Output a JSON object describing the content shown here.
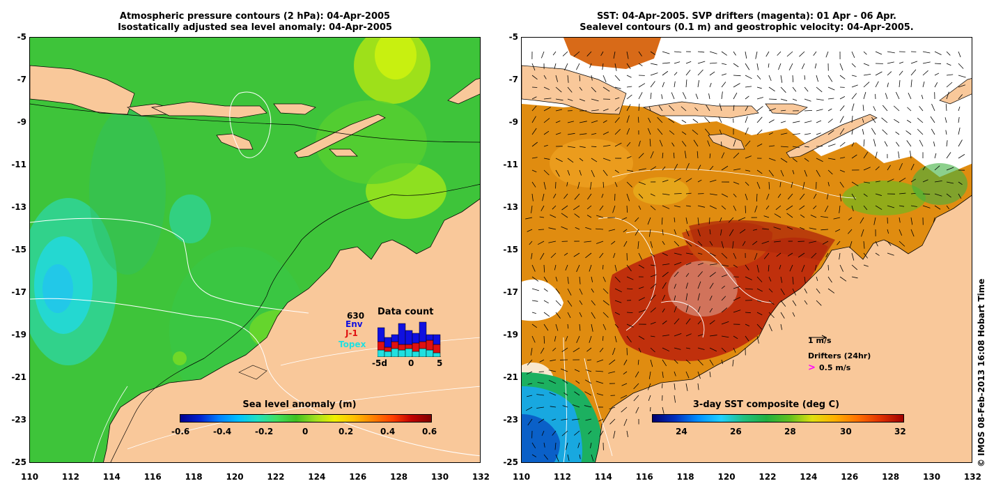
{
  "left_panel": {
    "title_line1": "Atmospheric pressure contours (2 hPa): 04-Apr-2005",
    "title_line2": "Isostatically adjusted sea level anomaly: 04-Apr-2005",
    "colorbar_title": "Sea level anomaly (m)",
    "colorbar_ticks": [
      "-0.6",
      "-0.4",
      "-0.2",
      "0",
      "0.2",
      "0.4",
      "0.6"
    ],
    "data_count": {
      "title": "Data count",
      "total": "630",
      "legend": [
        "Env",
        "J-1",
        "Topex"
      ],
      "legend_colors": [
        "#1010e0",
        "#e01010",
        "#20e0e0"
      ],
      "x_ticks": [
        "-5d",
        "0",
        "5"
      ]
    }
  },
  "right_panel": {
    "title_line1": "SST: 04-Apr-2005. SVP drifters (magenta): 01 Apr - 06 Apr.",
    "title_line2": "Sealevel contours (0.1 m) and geostrophic velocity: 04-Apr-2005.",
    "colorbar_title": "3-day SST composite (deg C)",
    "colorbar_ticks": [
      "24",
      "26",
      "28",
      "30",
      "32"
    ],
    "velocity_scale_label": "1 m/s",
    "drifters_label": "Drifters (24hr)",
    "drifter_scale_label": "0.5 m/s"
  },
  "axes": {
    "lat_ticks": [
      "-5",
      "-7",
      "-9",
      "-11",
      "-13",
      "-15",
      "-17",
      "-19",
      "-21",
      "-23",
      "-25"
    ],
    "lon_ticks": [
      "110",
      "112",
      "114",
      "116",
      "118",
      "120",
      "122",
      "124",
      "126",
      "128",
      "130",
      "132"
    ]
  },
  "credit": "© IMOS 08-Feb-2013 16:08 Hobart Time",
  "colors": {
    "land": "#f9c89a",
    "sla_background": "#3ec43a",
    "sst_background": "#e08c10",
    "magenta": "#ff00ff"
  }
}
